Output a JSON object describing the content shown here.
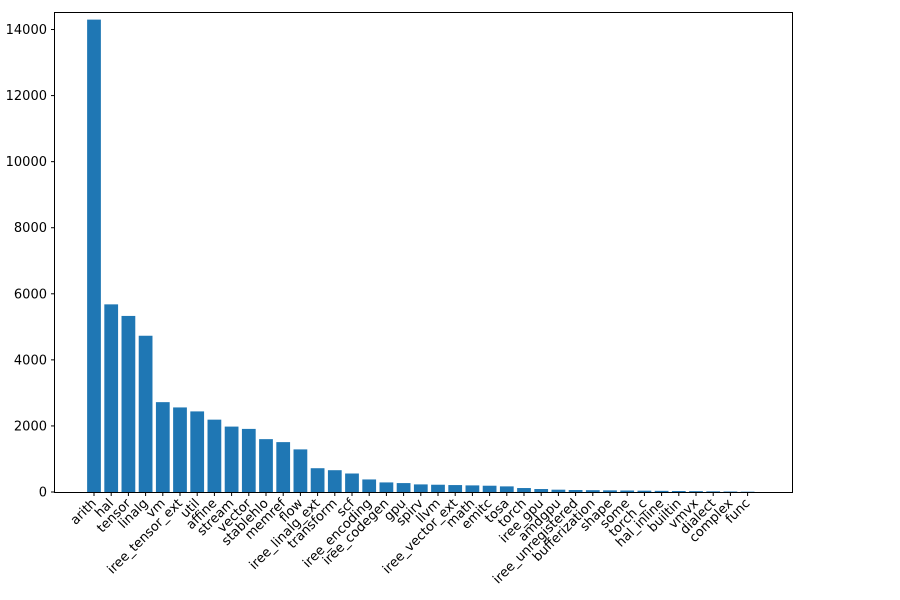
{
  "chart_data": {
    "type": "bar",
    "categories": [
      "arith",
      "hal",
      "tensor",
      "linalg",
      "vm",
      "iree_tensor_ext",
      "util",
      "affine",
      "stream",
      "vector",
      "stablehlo",
      "memref",
      "flow",
      "iree_linalg_ext",
      "transform",
      "scf",
      "iree_encoding",
      "iree_codegen",
      "gpu",
      "spirv",
      "llvm",
      "iree_vector_ext",
      "math",
      "emitc",
      "tosa",
      "torch",
      "iree_gpu",
      "amdgpu",
      "iree_unregistered",
      "bufferization",
      "shape",
      "some",
      "torch_c",
      "hal_inline",
      "builtin",
      "vmvx",
      "dialect",
      "complex",
      "func"
    ],
    "values": [
      14300,
      5680,
      5330,
      4730,
      2720,
      2560,
      2440,
      2190,
      1980,
      1910,
      1600,
      1510,
      1290,
      720,
      660,
      560,
      380,
      290,
      270,
      230,
      220,
      210,
      200,
      190,
      170,
      120,
      90,
      70,
      60,
      55,
      50,
      45,
      40,
      35,
      30,
      25,
      20,
      15,
      10
    ],
    "ylim": [
      0,
      14500
    ],
    "yticks": [
      0,
      2000,
      4000,
      6000,
      8000,
      10000,
      12000,
      14000
    ],
    "title": "",
    "xlabel": "",
    "ylabel": "",
    "grid": false,
    "bar_color": "#1f77b4"
  }
}
